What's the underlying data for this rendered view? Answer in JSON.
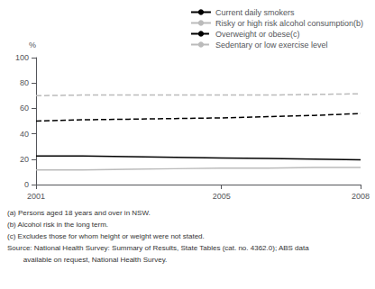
{
  "chart_data": {
    "type": "line",
    "ylabel": "%",
    "x": [
      2001,
      2002,
      2003,
      2004,
      2005,
      2006,
      2007,
      2008
    ],
    "series": [
      {
        "name": "Current daily smokers",
        "color": "#000000",
        "line_style": "solid",
        "values": [
          22.5,
          22.5,
          22.0,
          21.5,
          21.0,
          20.5,
          20.0,
          19.5
        ]
      },
      {
        "name": "Risky or high risk alcohol consumption(b)",
        "color": "#bbbbbb",
        "line_style": "solid",
        "values": [
          11.5,
          11.5,
          12.0,
          12.5,
          13.0,
          13.0,
          13.5,
          13.5
        ]
      },
      {
        "name": "Overweight or obese(c)",
        "color": "#000000",
        "line_style": "dashed",
        "values": [
          50.0,
          51.0,
          51.5,
          52.0,
          52.5,
          53.5,
          54.5,
          56.0
        ]
      },
      {
        "name": "Sedentary or low exercise level",
        "color": "#bbbbbb",
        "line_style": "dashed",
        "values": [
          70.0,
          70.5,
          70.5,
          70.5,
          70.5,
          70.5,
          71.0,
          71.5
        ]
      }
    ],
    "xlim": [
      2001,
      2008
    ],
    "xticks": [
      2001,
      2005,
      2008
    ],
    "ylim": [
      0,
      100
    ],
    "yticks": [
      0,
      20,
      40,
      60,
      80,
      100
    ],
    "grid": false,
    "legend": "upper right",
    "annotations": [
      "(a) Persons aged 18 years and over in NSW.",
      "(b) Alcohol risk in the long term.",
      "(c) Excludes those for whom height or weight were not stated.",
      "Source: National Health Survey: Summary of Results, State Tables (cat. no. 4362.0); ABS data",
      "        available on request, National Health Survey."
    ]
  }
}
